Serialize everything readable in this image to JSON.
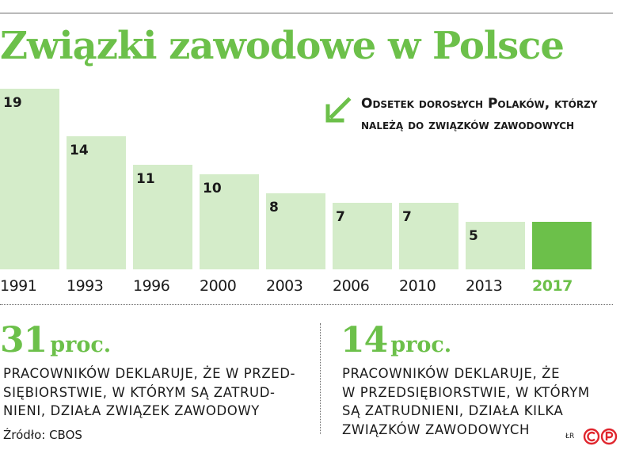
{
  "title": "Związki zawodowe w Polsce",
  "legend_text": "Odsetek dorosłych Polaków, którzy należą do związków zawodowych",
  "colors": {
    "bar": "#d4ecc9",
    "highlight": "#6cc04a",
    "text": "#1a1a1a"
  },
  "icons": {
    "legend": "arrow-down-left-icon",
    "logo": "cp-logo-icon"
  },
  "chart_data": {
    "type": "bar",
    "categories": [
      "1991",
      "1993",
      "1996",
      "2000",
      "2003",
      "2006",
      "2010",
      "2013",
      "2017"
    ],
    "values": [
      19,
      14,
      11,
      10,
      8,
      7,
      7,
      5,
      5
    ],
    "highlight_category": "2017",
    "title": "Związki zawodowe w Polsce",
    "xlabel": "",
    "ylabel": "",
    "ylim": [
      0,
      19
    ],
    "grid": false,
    "legend_position": "top-right"
  },
  "stats": [
    {
      "number": "31",
      "unit": "proc.",
      "description": "PRACOWNIKÓW DEKLARUJE, ŻE W PRZED-\nSIĘBIORSTWIE, W KTÓRYM SĄ ZATRUD-\nNIENI, DZIAŁA ZWIĄZEK ZAWODOWY"
    },
    {
      "number": "14",
      "unit": "proc.",
      "description": "PRACOWNIKÓW DEKLARUJE, ŻE\nW PRZEDSIĘBIORSTWIE, W KTÓRYM\nSĄ ZATRUDNIENI, DZIAŁA KILKA\nZWIĄZKÓW ZAWODOWYCH"
    }
  ],
  "source": "Źródło: CBOS",
  "credit": "ŁR"
}
